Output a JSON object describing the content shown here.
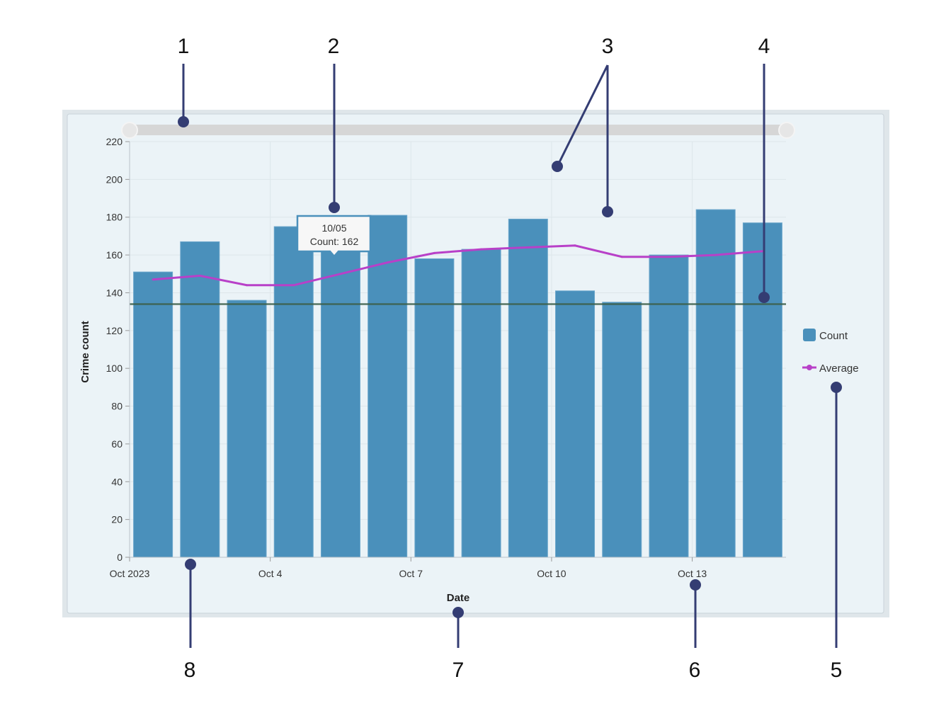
{
  "chart_data": {
    "type": "bar",
    "title": "",
    "xlabel": "Date",
    "ylabel": "Crime count",
    "ylim": [
      0,
      220
    ],
    "yticks": [
      0,
      20,
      40,
      60,
      80,
      100,
      120,
      140,
      160,
      180,
      200,
      220
    ],
    "x_tick_labels": [
      {
        "index": 0,
        "label": "Oct 2023"
      },
      {
        "index": 3,
        "label": "Oct 4"
      },
      {
        "index": 6,
        "label": "Oct 7"
      },
      {
        "index": 9,
        "label": "Oct 10"
      },
      {
        "index": 12,
        "label": "Oct 13"
      }
    ],
    "categories": [
      "10/01",
      "10/02",
      "10/03",
      "10/04",
      "10/05",
      "10/06",
      "10/07",
      "10/08",
      "10/09",
      "10/10",
      "10/11",
      "10/12",
      "10/13",
      "10/14"
    ],
    "series": [
      {
        "name": "Count",
        "type": "bar",
        "color": "#4a90bb",
        "values": [
          151,
          167,
          136,
          175,
          162,
          181,
          158,
          163,
          179,
          141,
          135,
          160,
          184,
          177
        ]
      },
      {
        "name": "Average",
        "type": "line",
        "color": "#b840c8",
        "values": [
          147,
          149,
          144,
          144,
          150,
          156,
          161,
          163,
          164,
          165,
          159,
          159,
          160,
          162
        ]
      }
    ],
    "reference_line": {
      "value": 134,
      "color": "#3d5f4a"
    },
    "tooltip": {
      "date": "10/05",
      "text": "Count: 162"
    },
    "legend": {
      "placement": "right"
    },
    "grid": true,
    "range_slider": true
  },
  "annotation_color": "#343d73",
  "annotations": [
    "1",
    "2",
    "3",
    "4",
    "5",
    "6",
    "7",
    "8"
  ]
}
